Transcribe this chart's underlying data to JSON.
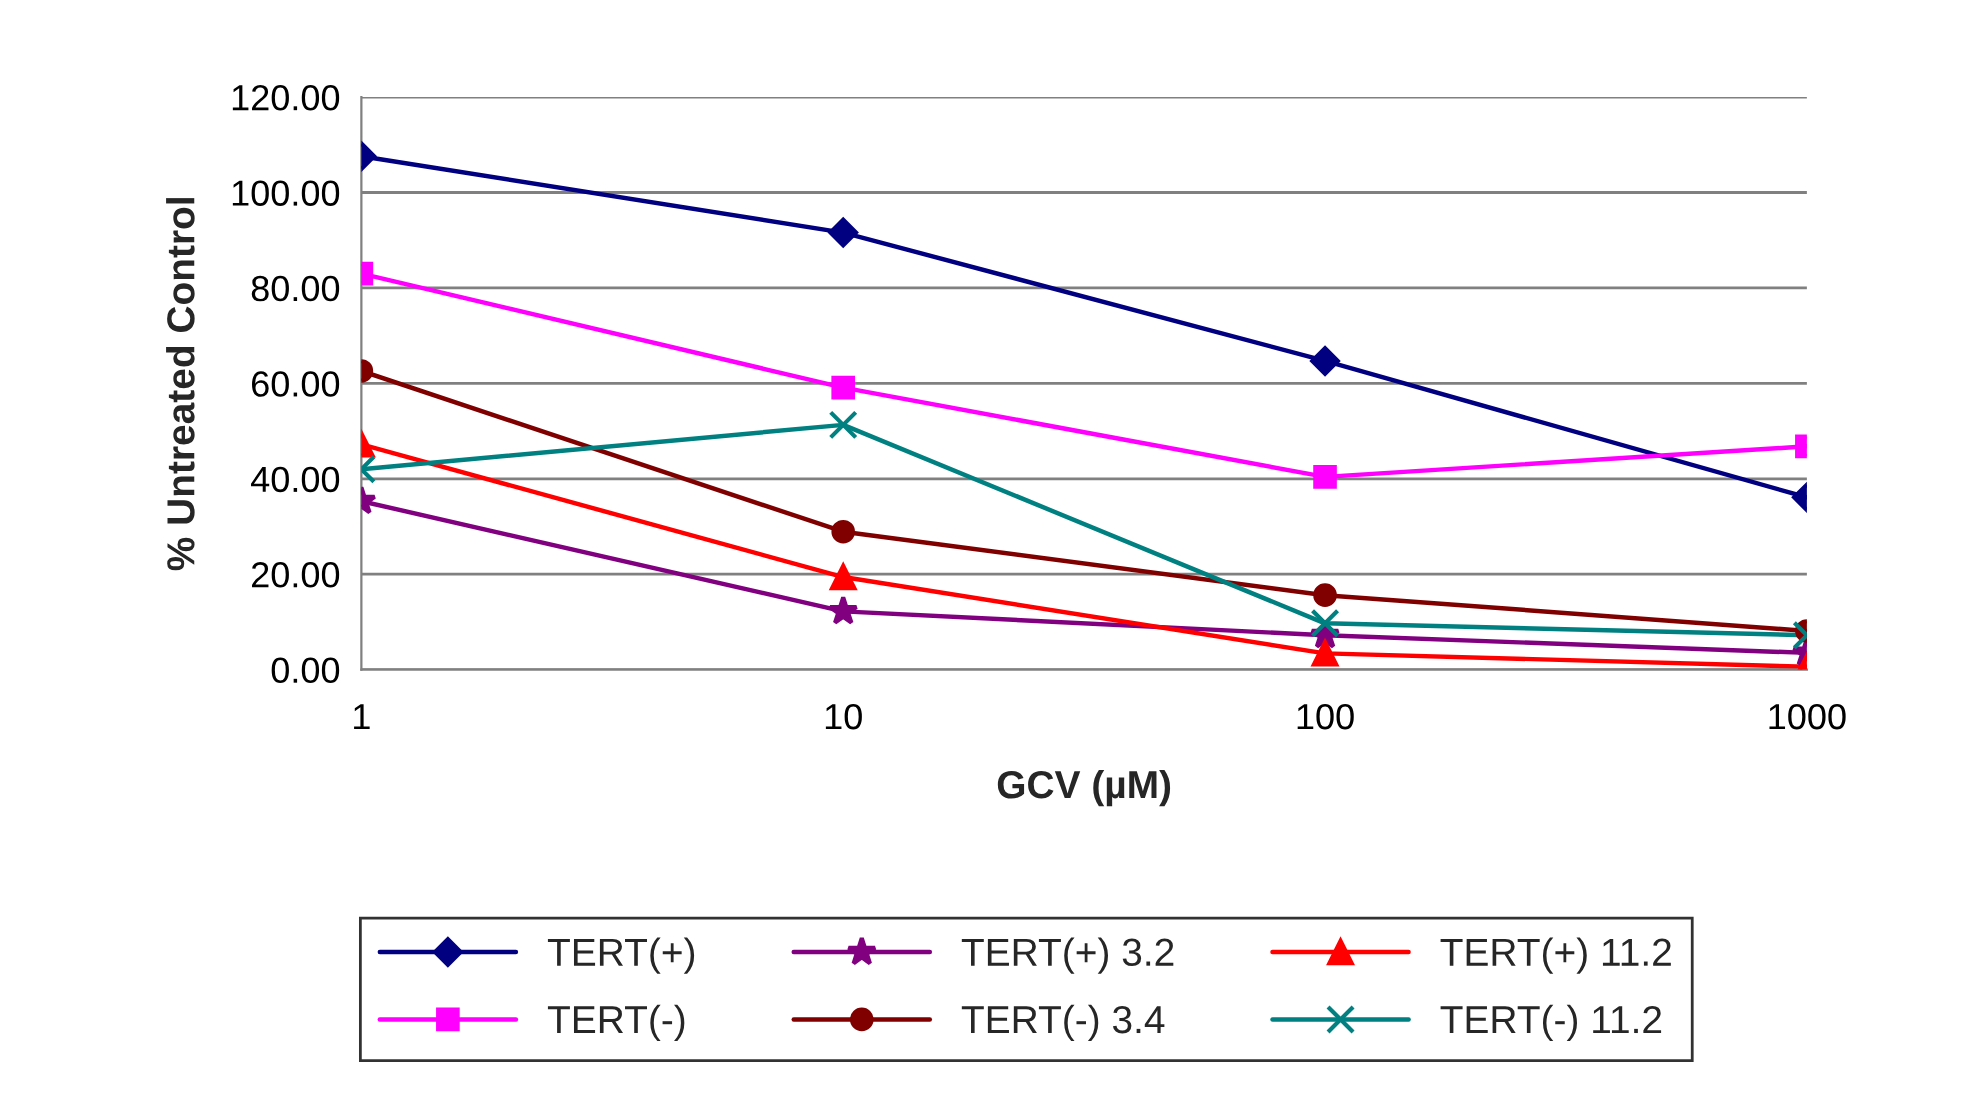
{
  "chart_data": {
    "type": "line",
    "xlabel": "GCV (µM)",
    "ylabel": "% Untreated Control",
    "x": [
      1,
      10,
      100,
      1000
    ],
    "log": "x",
    "xlim": [
      1,
      1000
    ],
    "xticks": [
      1,
      10,
      100,
      1000
    ],
    "ylim": [
      0,
      120
    ],
    "yticks": [
      {
        "value": 0,
        "label": "0.00"
      },
      {
        "value": 20,
        "label": "20.00"
      },
      {
        "value": 40,
        "label": "40.00"
      },
      {
        "value": 60,
        "label": "60.00"
      },
      {
        "value": 80,
        "label": "80.00"
      },
      {
        "value": 100,
        "label": "100.00"
      },
      {
        "value": 120,
        "label": "120.00"
      }
    ],
    "grid": "y",
    "legend": "bottom",
    "line_style": "solid",
    "series": [
      {
        "name": "TERT(+)",
        "color": "#000080",
        "marker": "diamond",
        "values": [
          107.6,
          91.6,
          64.7,
          36.1
        ]
      },
      {
        "name": "TERT(-)",
        "color": "#ff00ff",
        "marker": "square",
        "values": [
          83.0,
          59.1,
          40.4,
          46.8
        ]
      },
      {
        "name": "TERT(+) 3.2",
        "color": "#800080",
        "marker": "star",
        "values": [
          35.3,
          12.2,
          7.2,
          3.5
        ]
      },
      {
        "name": "TERT(-) 3.4",
        "color": "#800000",
        "marker": "circle",
        "values": [
          62.6,
          28.9,
          15.6,
          8.1
        ]
      },
      {
        "name": "TERT(+) 11.2",
        "color": "#ff0000",
        "marker": "triangle",
        "values": [
          47.2,
          19.4,
          3.4,
          0.6
        ]
      },
      {
        "name": "TERT(-) 11.2",
        "color": "#008080",
        "marker": "cross",
        "values": [
          42.0,
          51.3,
          9.7,
          7.2
        ]
      }
    ]
  }
}
